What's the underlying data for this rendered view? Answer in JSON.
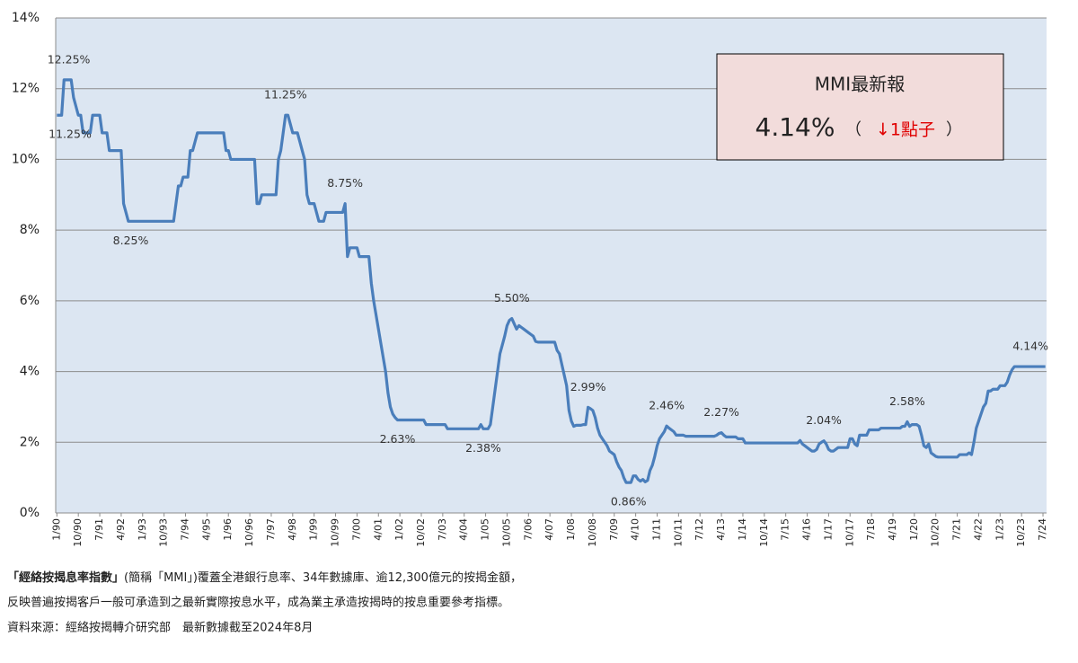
{
  "chart_data": {
    "type": "line",
    "color": "#4a7ebb",
    "plot_background": "#dce6f2",
    "grid": true,
    "ylim": [
      0,
      14
    ],
    "yticks": [
      {
        "value": 0,
        "label": "0%"
      },
      {
        "value": 2,
        "label": "2%"
      },
      {
        "value": 4,
        "label": "4%"
      },
      {
        "value": 6,
        "label": "6%"
      },
      {
        "value": 8,
        "label": "8%"
      },
      {
        "value": 10,
        "label": "10%"
      },
      {
        "value": 12,
        "label": "12%"
      },
      {
        "value": 14,
        "label": "14%"
      }
    ],
    "categories": [
      "1/90",
      null,
      null,
      null,
      null,
      null,
      null,
      null,
      null,
      "10/90",
      null,
      null,
      null,
      null,
      null,
      null,
      null,
      null,
      "7/91",
      null,
      null,
      null,
      null,
      null,
      null,
      null,
      null,
      "4/92",
      null,
      null,
      null,
      null,
      null,
      null,
      null,
      null,
      "1/93",
      null,
      null,
      null,
      null,
      null,
      null,
      null,
      null,
      "10/93",
      null,
      null,
      null,
      null,
      null,
      null,
      null,
      null,
      "7/94",
      null,
      null,
      null,
      null,
      null,
      null,
      null,
      null,
      "4/95",
      null,
      null,
      null,
      null,
      null,
      null,
      null,
      null,
      "1/96",
      null,
      null,
      null,
      null,
      null,
      null,
      null,
      null,
      "10/96",
      null,
      null,
      null,
      null,
      null,
      null,
      null,
      null,
      "7/97",
      null,
      null,
      null,
      null,
      null,
      null,
      null,
      null,
      "4/98",
      null,
      null,
      null,
      null,
      null,
      null,
      null,
      null,
      "1/99",
      null,
      null,
      null,
      null,
      null,
      null,
      null,
      null,
      "10/99",
      null,
      null,
      null,
      null,
      null,
      null,
      null,
      null,
      "7/00",
      null,
      null,
      null,
      null,
      null,
      null,
      null,
      null,
      "4/01",
      null,
      null,
      null,
      null,
      null,
      null,
      null,
      null,
      "1/02",
      null,
      null,
      null,
      null,
      null,
      null,
      null,
      null,
      "10/02",
      null,
      null,
      null,
      null,
      null,
      null,
      null,
      null,
      "7/03",
      null,
      null,
      null,
      null,
      null,
      null,
      null,
      null,
      "4/04",
      null,
      null,
      null,
      null,
      null,
      null,
      null,
      null,
      "1/05",
      null,
      null,
      null,
      null,
      null,
      null,
      null,
      null,
      "10/05",
      null,
      null,
      null,
      null,
      null,
      null,
      null,
      null,
      "7/06",
      null,
      null,
      null,
      null,
      null,
      null,
      null,
      null,
      "4/07",
      null,
      null,
      null,
      null,
      null,
      null,
      null,
      null,
      "1/08",
      null,
      null,
      null,
      null,
      null,
      null,
      null,
      null,
      "10/08",
      null,
      null,
      null,
      null,
      null,
      null,
      null,
      null,
      "7/09",
      null,
      null,
      null,
      null,
      null,
      null,
      null,
      null,
      "4/10",
      null,
      null,
      null,
      null,
      null,
      null,
      null,
      null,
      "1/11",
      null,
      null,
      null,
      null,
      null,
      null,
      null,
      null,
      "10/11",
      null,
      null,
      null,
      null,
      null,
      null,
      null,
      null,
      "7/12",
      null,
      null,
      null,
      null,
      null,
      null,
      null,
      null,
      "4/13",
      null,
      null,
      null,
      null,
      null,
      null,
      null,
      null,
      "1/14",
      null,
      null,
      null,
      null,
      null,
      null,
      null,
      null,
      "10/14",
      null,
      null,
      null,
      null,
      null,
      null,
      null,
      null,
      "7/15",
      null,
      null,
      null,
      null,
      null,
      null,
      null,
      null,
      "4/16",
      null,
      null,
      null,
      null,
      null,
      null,
      null,
      null,
      "1/17",
      null,
      null,
      null,
      null,
      null,
      null,
      null,
      null,
      "10/17",
      null,
      null,
      null,
      null,
      null,
      null,
      null,
      null,
      "7/18",
      null,
      null,
      null,
      null,
      null,
      null,
      null,
      null,
      "4/19",
      null,
      null,
      null,
      null,
      null,
      null,
      null,
      null,
      "1/20",
      null,
      null,
      null,
      null,
      null,
      null,
      null,
      null,
      "10/20",
      null,
      null,
      null,
      null,
      null,
      null,
      null,
      null,
      "7/21",
      null,
      null,
      null,
      null,
      null,
      null,
      null,
      null,
      "4/22",
      null,
      null,
      null,
      null,
      null,
      null,
      null,
      null,
      "1/23",
      null,
      null,
      null,
      null,
      null,
      null,
      null,
      null,
      "10/23",
      null,
      null,
      null,
      null,
      null,
      null,
      null,
      null,
      "7/24",
      null
    ],
    "values": [
      11.25,
      11.25,
      11.25,
      12.25,
      12.25,
      12.25,
      12.25,
      11.75,
      11.5,
      11.25,
      11.25,
      10.75,
      10.75,
      10.75,
      10.75,
      11.25,
      11.25,
      11.25,
      11.25,
      10.75,
      10.75,
      10.75,
      10.25,
      10.25,
      10.25,
      10.25,
      10.25,
      10.25,
      8.75,
      8.5,
      8.25,
      8.25,
      8.25,
      8.25,
      8.25,
      8.25,
      8.25,
      8.25,
      8.25,
      8.25,
      8.25,
      8.25,
      8.25,
      8.25,
      8.25,
      8.25,
      8.25,
      8.25,
      8.25,
      8.25,
      8.75,
      9.25,
      9.25,
      9.5,
      9.5,
      9.5,
      10.25,
      10.25,
      10.5,
      10.75,
      10.75,
      10.75,
      10.75,
      10.75,
      10.75,
      10.75,
      10.75,
      10.75,
      10.75,
      10.75,
      10.75,
      10.25,
      10.25,
      10.0,
      10.0,
      10.0,
      10.0,
      10.0,
      10.0,
      10.0,
      10.0,
      10.0,
      10.0,
      10.0,
      8.75,
      8.75,
      9.0,
      9.0,
      9.0,
      9.0,
      9.0,
      9.0,
      9.0,
      10.0,
      10.25,
      10.75,
      11.25,
      11.25,
      11.0,
      10.75,
      10.75,
      10.75,
      10.5,
      10.25,
      10.0,
      9.0,
      8.75,
      8.75,
      8.75,
      8.5,
      8.25,
      8.25,
      8.25,
      8.5,
      8.5,
      8.5,
      8.5,
      8.5,
      8.5,
      8.5,
      8.5,
      8.75,
      7.25,
      7.5,
      7.5,
      7.5,
      7.5,
      7.25,
      7.25,
      7.25,
      7.25,
      7.25,
      6.5,
      6.0,
      5.6,
      5.2,
      4.8,
      4.4,
      4.0,
      3.4,
      3.0,
      2.8,
      2.7,
      2.63,
      2.63,
      2.63,
      2.63,
      2.63,
      2.63,
      2.63,
      2.63,
      2.63,
      2.63,
      2.63,
      2.63,
      2.5,
      2.5,
      2.5,
      2.5,
      2.5,
      2.5,
      2.5,
      2.5,
      2.5,
      2.38,
      2.38,
      2.38,
      2.38,
      2.38,
      2.38,
      2.38,
      2.38,
      2.38,
      2.38,
      2.38,
      2.38,
      2.38,
      2.38,
      2.5,
      2.38,
      2.38,
      2.38,
      2.5,
      3.0,
      3.5,
      4.0,
      4.5,
      4.75,
      5.0,
      5.3,
      5.45,
      5.5,
      5.35,
      5.2,
      5.3,
      5.25,
      5.2,
      5.15,
      5.1,
      5.05,
      5.0,
      4.85,
      4.83,
      4.83,
      4.83,
      4.83,
      4.83,
      4.83,
      4.83,
      4.83,
      4.6,
      4.5,
      4.2,
      3.9,
      3.6,
      2.9,
      2.6,
      2.45,
      2.48,
      2.48,
      2.48,
      2.5,
      2.5,
      2.99,
      2.95,
      2.9,
      2.7,
      2.4,
      2.2,
      2.1,
      2.0,
      1.9,
      1.75,
      1.7,
      1.65,
      1.45,
      1.3,
      1.2,
      1.0,
      0.86,
      0.86,
      0.86,
      1.05,
      1.05,
      0.95,
      0.9,
      0.95,
      0.88,
      0.92,
      1.2,
      1.35,
      1.6,
      1.9,
      2.1,
      2.2,
      2.3,
      2.46,
      2.4,
      2.35,
      2.3,
      2.2,
      2.2,
      2.2,
      2.2,
      2.17,
      2.17,
      2.17,
      2.17,
      2.17,
      2.17,
      2.17,
      2.17,
      2.17,
      2.17,
      2.17,
      2.17,
      2.17,
      2.2,
      2.25,
      2.27,
      2.2,
      2.15,
      2.15,
      2.15,
      2.15,
      2.15,
      2.1,
      2.1,
      2.1,
      1.98,
      1.98,
      1.98,
      1.98,
      1.98,
      1.98,
      1.98,
      1.98,
      1.98,
      1.98,
      1.98,
      1.98,
      1.98,
      1.98,
      1.98,
      1.98,
      1.98,
      1.98,
      1.98,
      1.98,
      1.98,
      1.98,
      1.98,
      2.05,
      1.95,
      1.9,
      1.85,
      1.8,
      1.75,
      1.75,
      1.8,
      1.95,
      2.0,
      2.04,
      1.95,
      1.8,
      1.75,
      1.75,
      1.8,
      1.85,
      1.85,
      1.85,
      1.85,
      1.85,
      2.1,
      2.1,
      1.95,
      1.9,
      2.2,
      2.2,
      2.2,
      2.2,
      2.35,
      2.35,
      2.35,
      2.35,
      2.35,
      2.4,
      2.4,
      2.4,
      2.4,
      2.4,
      2.4,
      2.4,
      2.4,
      2.4,
      2.45,
      2.45,
      2.58,
      2.45,
      2.5,
      2.5,
      2.5,
      2.45,
      2.2,
      1.9,
      1.85,
      1.95,
      1.7,
      1.65,
      1.6,
      1.58,
      1.58,
      1.58,
      1.58,
      1.58,
      1.58,
      1.58,
      1.58,
      1.58,
      1.65,
      1.65,
      1.65,
      1.65,
      1.7,
      1.65,
      2.0,
      2.4,
      2.6,
      2.8,
      3.0,
      3.1,
      3.45,
      3.45,
      3.5,
      3.5,
      3.5,
      3.6,
      3.6,
      3.6,
      3.7,
      3.9,
      4.05,
      4.14,
      4.14,
      4.14,
      4.14,
      4.14,
      4.14,
      4.14,
      4.14,
      4.14,
      4.14,
      4.14,
      4.14,
      4.14,
      4.14
    ],
    "value_labels": [
      "11.25%",
      null,
      null,
      null,
      null,
      "12.25%",
      null,
      null,
      null,
      null,
      null,
      null,
      null,
      null,
      null,
      null,
      null,
      null,
      null,
      null,
      null,
      null,
      null,
      null,
      null,
      null,
      null,
      null,
      null,
      null,
      null,
      "8.25%",
      null,
      null,
      null,
      null,
      null,
      null,
      null,
      null,
      null,
      null,
      null,
      null,
      null,
      null,
      null,
      null,
      null,
      null,
      null,
      null,
      null,
      null,
      null,
      null,
      null,
      null,
      null,
      null,
      null,
      null,
      null,
      null,
      null,
      null,
      null,
      null,
      null,
      null,
      null,
      null,
      null,
      null,
      null,
      null,
      null,
      null,
      null,
      null,
      null,
      null,
      null,
      null,
      null,
      null,
      null,
      null,
      null,
      null,
      null,
      null,
      null,
      null,
      null,
      null,
      "11.25%",
      null,
      null,
      null,
      null,
      null,
      null,
      null,
      null,
      null,
      null,
      null,
      null,
      null,
      null,
      null,
      null,
      null,
      null,
      null,
      null,
      null,
      null,
      null,
      null,
      "8.75%",
      null,
      null,
      null,
      null,
      null,
      null,
      null,
      null,
      null,
      null,
      null,
      null,
      null,
      null,
      null,
      null,
      null,
      null,
      null,
      null,
      null,
      "2.63%",
      null,
      null,
      null,
      null,
      null,
      null,
      null,
      null,
      null,
      null,
      null,
      null,
      null,
      null,
      null,
      null,
      null,
      null,
      null,
      null,
      null,
      null,
      null,
      null,
      null,
      null,
      null,
      null,
      null,
      null,
      null,
      null,
      null,
      null,
      null,
      "2.38%",
      null,
      null,
      null,
      null,
      null,
      null,
      null,
      null,
      null,
      null,
      null,
      "5.50%",
      null,
      null,
      null,
      null,
      null,
      null,
      null,
      null,
      null,
      null,
      null,
      null,
      null,
      null,
      null,
      null,
      null,
      null,
      null,
      null,
      null,
      null,
      null,
      null,
      null,
      null,
      null,
      null,
      null,
      null,
      null,
      "2.99%",
      null,
      null,
      null,
      null,
      null,
      null,
      null,
      null,
      null,
      null,
      null,
      null,
      null,
      null,
      null,
      null,
      "0.86%",
      null,
      null,
      null,
      null,
      null,
      null,
      null,
      null,
      null,
      null,
      null,
      null,
      null,
      null,
      null,
      "2.46%",
      null,
      null,
      null,
      null,
      null,
      null,
      null,
      null,
      null,
      null,
      null,
      null,
      null,
      null,
      null,
      null,
      null,
      null,
      null,
      null,
      null,
      null,
      "2.27%",
      null,
      null,
      null,
      null,
      null,
      null,
      null,
      null,
      null,
      null,
      null,
      null,
      null,
      null,
      null,
      null,
      null,
      null,
      null,
      null,
      null,
      null,
      null,
      null,
      null,
      null,
      null,
      null,
      null,
      null,
      null,
      null,
      null,
      null,
      null,
      null,
      null,
      null,
      null,
      null,
      null,
      null,
      "2.04%",
      null,
      null,
      null,
      null,
      null,
      null,
      null,
      null,
      null,
      null,
      null,
      null,
      null,
      null,
      null,
      null,
      null,
      null,
      null,
      null,
      null,
      null,
      null,
      null,
      null,
      null,
      null,
      null,
      null,
      null,
      null,
      null,
      null,
      null,
      "2.58%",
      null,
      null,
      null,
      null,
      null,
      null,
      null,
      null,
      null,
      null,
      null,
      null,
      null,
      null,
      null,
      null,
      null,
      null,
      null,
      null,
      null,
      null,
      null,
      null,
      null,
      null,
      null,
      null,
      null,
      null,
      null,
      null,
      null,
      null,
      null,
      null,
      null,
      null,
      null,
      null,
      null,
      null,
      null,
      null,
      null,
      null,
      null,
      null,
      null,
      null,
      null,
      null,
      null,
      null,
      null,
      null,
      null,
      "4.14%"
    ],
    "callout": {
      "title": "MMI最新報",
      "value": "4.14%",
      "open": "（",
      "change": "↓1點子",
      "close": "）"
    },
    "notes": {
      "line1_bold": "「經絡按揭息率指數」",
      "line1": "(簡稱「MMI」)覆蓋全港銀行息率、34年數據庫、逾12,300億元的按揭金額，",
      "line2": "反映普遍按揭客戶一般可承造到之最新實際按息水平，成為業主承造按揭時的按息重要參考指標。",
      "line3": "資料來源：經絡按揭轉介研究部　最新數據截至2024年8月"
    }
  }
}
